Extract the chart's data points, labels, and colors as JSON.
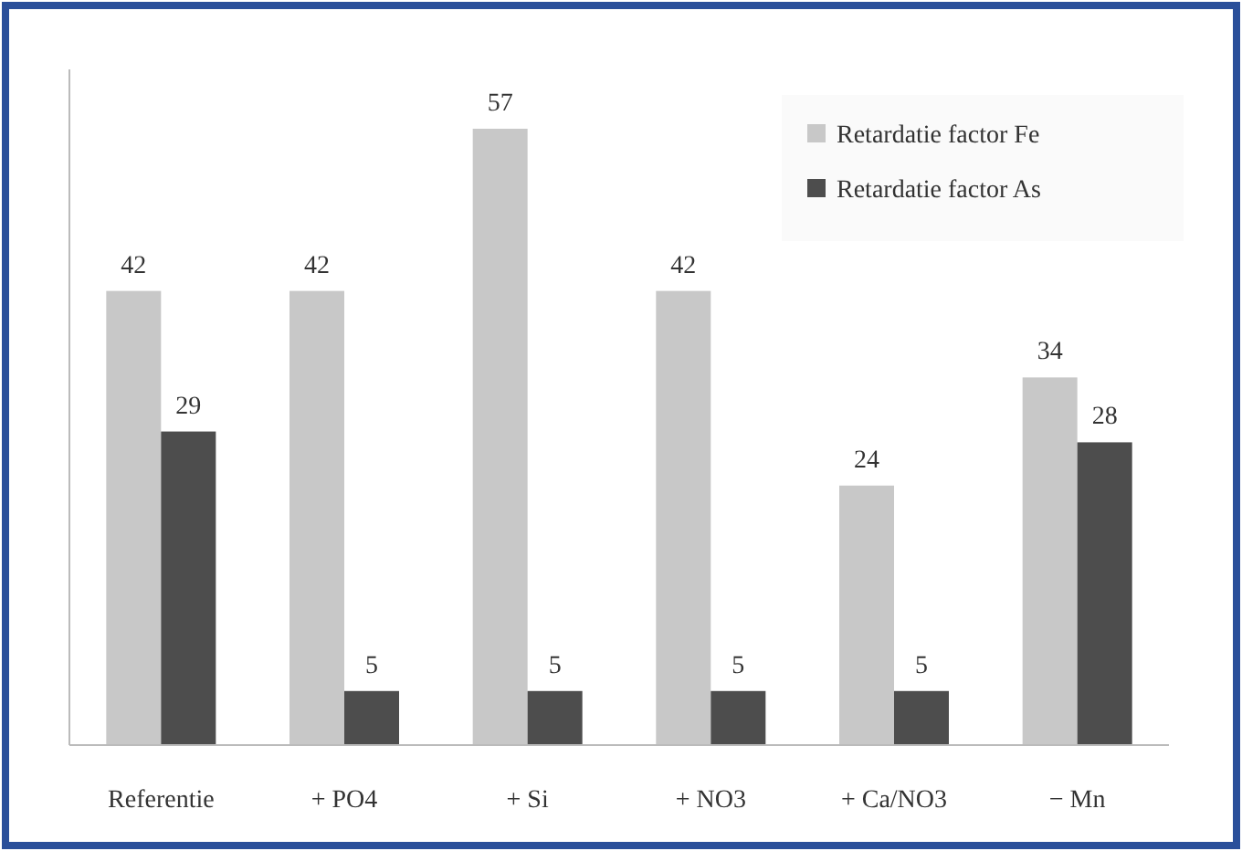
{
  "chart_data": {
    "type": "bar",
    "categories": [
      "Referentie",
      "+ PO4",
      "+ Si",
      "+ NO3",
      "+ Ca/NO3",
      "− Mn"
    ],
    "series": [
      {
        "name": "Retardatie factor Fe",
        "color": "#c8c8c8",
        "values": [
          42,
          42,
          57,
          42,
          24,
          34
        ]
      },
      {
        "name": "Retardatie factor As",
        "color": "#4d4d4d",
        "values": [
          29,
          5,
          5,
          5,
          5,
          28
        ]
      }
    ],
    "data_labels": true,
    "legend": "top right"
  }
}
